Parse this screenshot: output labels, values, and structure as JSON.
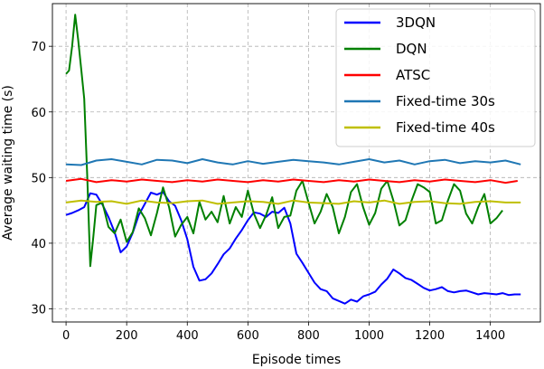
{
  "chart_data": {
    "type": "line",
    "title": "",
    "xlabel": "Episode times",
    "ylabel": "Average waiting time (s)",
    "xlim": [
      -45,
      1565
    ],
    "ylim": [
      28,
      76.5
    ],
    "xticks": [
      0,
      200,
      400,
      600,
      800,
      1000,
      1200,
      1400
    ],
    "yticks": [
      30,
      40,
      50,
      60,
      70
    ],
    "grid": true,
    "legend_position": "top-right",
    "series": [
      {
        "name": "3DQN",
        "color": "#0000ff",
        "x": [
          0,
          20,
          40,
          60,
          80,
          100,
          120,
          140,
          160,
          180,
          200,
          220,
          240,
          260,
          280,
          300,
          320,
          340,
          360,
          380,
          400,
          420,
          440,
          460,
          480,
          500,
          520,
          540,
          560,
          580,
          600,
          620,
          640,
          660,
          680,
          700,
          720,
          740,
          760,
          780,
          800,
          820,
          840,
          860,
          880,
          900,
          920,
          940,
          960,
          980,
          1000,
          1020,
          1040,
          1060,
          1080,
          1100,
          1120,
          1140,
          1160,
          1180,
          1200,
          1220,
          1240,
          1260,
          1280,
          1300,
          1320,
          1340,
          1360,
          1380,
          1400,
          1420,
          1440,
          1460,
          1480,
          1500
        ],
        "values": [
          44.3,
          44.6,
          45.0,
          45.5,
          47.6,
          47.4,
          45.9,
          44.0,
          41.7,
          38.6,
          39.5,
          41.6,
          44.3,
          46.0,
          47.7,
          47.4,
          47.8,
          46.4,
          45.7,
          43.5,
          40.6,
          36.4,
          34.3,
          34.5,
          35.4,
          36.8,
          38.3,
          39.2,
          40.7,
          42.0,
          43.5,
          44.7,
          44.5,
          44.0,
          44.8,
          44.6,
          45.4,
          43.0,
          38.4,
          37.0,
          35.5,
          34.0,
          33.0,
          32.7,
          31.6,
          31.2,
          30.8,
          31.4,
          31.1,
          31.9,
          32.2,
          32.6,
          33.7,
          34.6,
          36.0,
          35.4,
          34.7,
          34.4,
          33.8,
          33.2,
          32.8,
          33.0,
          33.3,
          32.7,
          32.5,
          32.7,
          32.8,
          32.5,
          32.2,
          32.4,
          32.3,
          32.2,
          32.4,
          32.1,
          32.2,
          32.2
        ]
      },
      {
        "name": "DQN",
        "color": "#008000",
        "x": [
          0,
          10,
          20,
          30,
          40,
          50,
          60,
          70,
          80,
          90,
          100,
          120,
          140,
          160,
          180,
          200,
          220,
          240,
          260,
          280,
          300,
          320,
          340,
          360,
          380,
          400,
          420,
          440,
          460,
          480,
          500,
          520,
          540,
          560,
          580,
          600,
          620,
          640,
          660,
          680,
          700,
          720,
          740,
          760,
          780,
          800,
          820,
          840,
          860,
          880,
          900,
          920,
          940,
          960,
          980,
          1000,
          1020,
          1040,
          1060,
          1080,
          1100,
          1120,
          1140,
          1160,
          1180,
          1200,
          1220,
          1240,
          1260,
          1280,
          1300,
          1320,
          1340,
          1360,
          1380,
          1400,
          1420,
          1440
        ],
        "values": [
          65.8,
          66.3,
          70.0,
          74.8,
          71.0,
          66.5,
          62.0,
          50.0,
          36.5,
          41.0,
          45.8,
          46.2,
          42.5,
          41.5,
          43.6,
          40.2,
          41.7,
          45.3,
          43.8,
          41.2,
          44.6,
          48.5,
          45.5,
          41.0,
          42.8,
          44.0,
          41.5,
          46.3,
          43.6,
          44.8,
          43.2,
          47.2,
          43.0,
          45.5,
          44.0,
          48.0,
          44.5,
          42.3,
          44.3,
          47.0,
          42.3,
          44.0,
          44.2,
          48.0,
          49.5,
          46.2,
          43.0,
          44.8,
          47.5,
          45.5,
          41.5,
          44.0,
          47.8,
          49.0,
          45.5,
          42.8,
          44.6,
          48.3,
          49.5,
          46.5,
          42.7,
          43.5,
          46.5,
          49.0,
          48.5,
          47.8,
          43.0,
          43.5,
          46.5,
          49.0,
          48.0,
          44.5,
          43.0,
          45.5,
          47.5,
          43.0,
          43.8,
          45.0
        ]
      },
      {
        "name": "ATSC",
        "color": "#ff0000",
        "x": [
          0,
          50,
          100,
          150,
          200,
          250,
          300,
          350,
          400,
          450,
          500,
          550,
          600,
          650,
          700,
          750,
          800,
          850,
          900,
          950,
          1000,
          1050,
          1100,
          1150,
          1200,
          1250,
          1300,
          1350,
          1400,
          1450,
          1490
        ],
        "values": [
          49.5,
          49.8,
          49.3,
          49.6,
          49.4,
          49.7,
          49.5,
          49.3,
          49.6,
          49.4,
          49.7,
          49.5,
          49.3,
          49.6,
          49.4,
          49.7,
          49.5,
          49.3,
          49.6,
          49.4,
          49.7,
          49.5,
          49.3,
          49.6,
          49.4,
          49.7,
          49.5,
          49.3,
          49.6,
          49.2,
          49.5
        ]
      },
      {
        "name": "Fixed-time 30s",
        "color": "#1f77b4",
        "x": [
          0,
          50,
          100,
          150,
          200,
          250,
          300,
          350,
          400,
          450,
          500,
          550,
          600,
          650,
          700,
          750,
          800,
          850,
          900,
          950,
          1000,
          1050,
          1100,
          1150,
          1200,
          1250,
          1300,
          1350,
          1400,
          1450,
          1500
        ],
        "values": [
          52.0,
          51.9,
          52.6,
          52.8,
          52.4,
          52.0,
          52.7,
          52.6,
          52.2,
          52.8,
          52.3,
          52.0,
          52.5,
          52.1,
          52.4,
          52.7,
          52.5,
          52.3,
          52.0,
          52.4,
          52.8,
          52.3,
          52.6,
          52.0,
          52.5,
          52.7,
          52.2,
          52.5,
          52.3,
          52.6,
          52.0
        ]
      },
      {
        "name": "Fixed-time 40s",
        "color": "#bfbf00",
        "x": [
          0,
          50,
          100,
          150,
          200,
          250,
          300,
          350,
          400,
          450,
          500,
          550,
          600,
          650,
          700,
          750,
          800,
          850,
          900,
          950,
          1000,
          1050,
          1100,
          1150,
          1200,
          1250,
          1300,
          1350,
          1400,
          1450,
          1500
        ],
        "values": [
          46.2,
          46.5,
          46.3,
          46.4,
          46.0,
          46.5,
          46.2,
          46.1,
          46.4,
          46.5,
          46.0,
          46.2,
          46.4,
          46.3,
          46.0,
          46.5,
          46.2,
          46.1,
          46.0,
          46.4,
          46.2,
          46.5,
          46.0,
          46.3,
          46.4,
          46.1,
          46.0,
          46.3,
          46.4,
          46.2,
          46.2
        ]
      }
    ]
  }
}
